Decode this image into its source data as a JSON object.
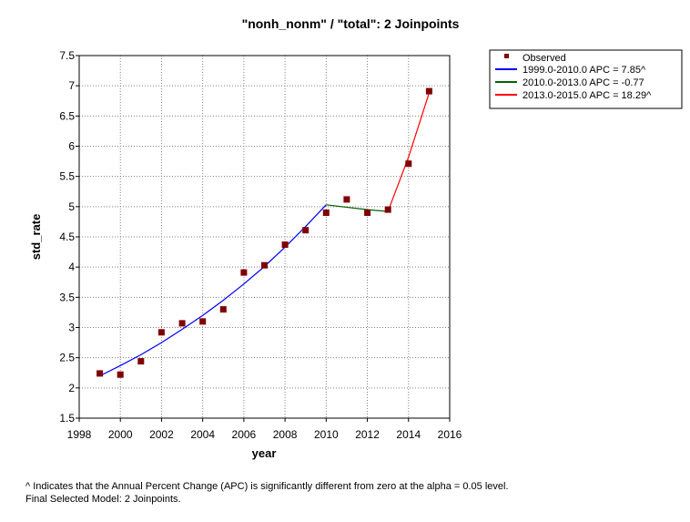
{
  "chart_data": {
    "type": "line",
    "title": "\"nonh_nonm\" / \"total\": 2 Joinpoints",
    "xlabel": "year",
    "ylabel": "std_rate",
    "xlim": [
      1998,
      2016
    ],
    "ylim": [
      1.5,
      7.5
    ],
    "x_ticks": [
      "1998",
      "2000",
      "2002",
      "2004",
      "2006",
      "2008",
      "2010",
      "2012",
      "2014",
      "2016"
    ],
    "y_ticks": [
      "1.5",
      "2",
      "2.5",
      "3",
      "3.5",
      "4",
      "4.5",
      "5",
      "5.5",
      "6",
      "6.5",
      "7",
      "7.5"
    ],
    "grid": true,
    "legend_position": "outside-top-right",
    "observed": {
      "name": "Observed",
      "color": "#800000",
      "x": [
        1999,
        2000,
        2001,
        2002,
        2003,
        2004,
        2005,
        2006,
        2007,
        2008,
        2009,
        2010,
        2011,
        2012,
        2013,
        2014,
        2015
      ],
      "y": [
        2.24,
        2.22,
        2.44,
        2.92,
        3.07,
        3.1,
        3.3,
        3.91,
        4.03,
        4.37,
        4.61,
        4.9,
        5.12,
        4.9,
        4.95,
        5.71,
        6.91
      ]
    },
    "series": [
      {
        "name": "1999.0-2010.0 APC  =  7.85^",
        "color": "#0000ff",
        "x": [
          1999,
          2000,
          2001,
          2002,
          2003,
          2004,
          2005,
          2006,
          2007,
          2008,
          2009,
          2010
        ],
        "y": [
          2.2,
          2.37,
          2.55,
          2.75,
          2.97,
          3.2,
          3.45,
          3.72,
          4.01,
          4.33,
          4.67,
          5.03
        ]
      },
      {
        "name": "2010.0-2013.0 APC  =  -0.77",
        "color": "#006400",
        "x": [
          2010,
          2011,
          2012,
          2013
        ],
        "y": [
          5.03,
          4.99,
          4.95,
          4.92
        ]
      },
      {
        "name": "2013.0-2015.0 APC  =  18.29^",
        "color": "#ff0000",
        "x": [
          2013,
          2014,
          2015
        ],
        "y": [
          4.92,
          5.82,
          6.88
        ]
      }
    ]
  },
  "footnote": {
    "line1": "^ Indicates that the Annual Percent Change (APC) is significantly different from zero at the alpha = 0.05 level.",
    "line2": "Final Selected Model: 2 Joinpoints."
  }
}
